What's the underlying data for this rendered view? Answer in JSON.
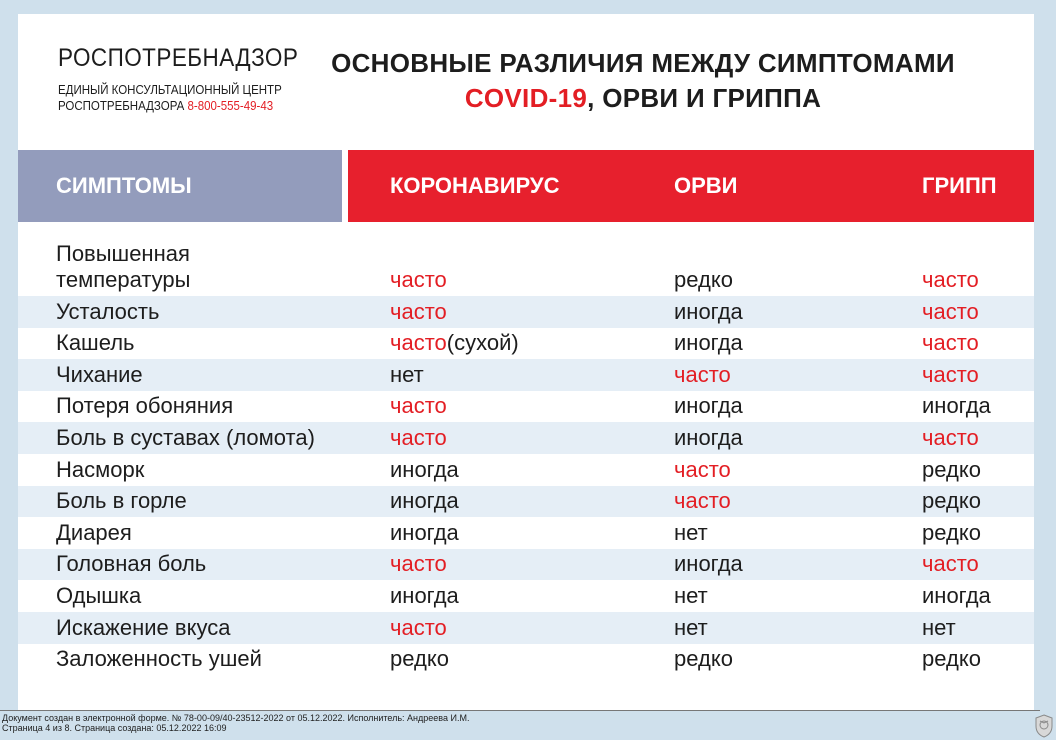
{
  "header": {
    "org_name": "РОСПОТРЕБНАДЗОР",
    "org_sub_line1": "ЕДИНЫЙ КОНСУЛЬТАЦИОННЫЙ ЦЕНТР",
    "org_sub_line2": "РОСПОТРЕБНАДЗОРА",
    "phone": "8-800-555-49-43",
    "title_line1": "ОСНОВНЫЕ РАЗЛИЧИЯ МЕЖДУ СИМПТОМАМИ",
    "title_red": "COVID-19",
    "title_line2_rest": ", ОРВИ И ГРИППА"
  },
  "table": {
    "columns": [
      "СИМПТОМЫ",
      "КОРОНАВИРУС",
      "ОРВИ",
      "ГРИПП"
    ],
    "rows": [
      {
        "symptom": "Повышенная",
        "symptom2": "температуры",
        "covid": "часто",
        "covid_suffix": "",
        "orvi": "редко",
        "flu": "часто"
      },
      {
        "symptom": "Усталость",
        "covid": "часто",
        "covid_suffix": "",
        "orvi": "иногда",
        "flu": "часто"
      },
      {
        "symptom": "Кашель",
        "covid": "часто",
        "covid_suffix": "(сухой)",
        "orvi": "иногда",
        "flu": "часто"
      },
      {
        "symptom": "Чихание",
        "covid": "нет",
        "covid_suffix": "",
        "orvi": "часто",
        "flu": "часто"
      },
      {
        "symptom": "Потеря обоняния",
        "covid": "часто",
        "covid_suffix": "",
        "orvi": "иногда",
        "flu": "иногда"
      },
      {
        "symptom": "Боль в суставах (ломота)",
        "covid": "часто",
        "covid_suffix": "",
        "orvi": "иногда",
        "flu": "часто"
      },
      {
        "symptom": "Насморк",
        "covid": "иногда",
        "covid_suffix": "",
        "orvi": "часто",
        "flu": "редко"
      },
      {
        "symptom": "Боль в горле",
        "covid": "иногда",
        "covid_suffix": "",
        "orvi": "часто",
        "flu": "редко"
      },
      {
        "symptom": "Диарея",
        "covid": "иногда",
        "covid_suffix": "",
        "orvi": "нет",
        "flu": "редко"
      },
      {
        "symptom": "Головная боль",
        "covid": "часто",
        "covid_suffix": "",
        "orvi": "иногда",
        "flu": "часто"
      },
      {
        "symptom": "Одышка",
        "covid": "иногда",
        "covid_suffix": "",
        "orvi": "нет",
        "flu": "иногда"
      },
      {
        "symptom": "Искажение вкуса",
        "covid": "часто",
        "covid_suffix": "",
        "orvi": "нет",
        "flu": "нет"
      },
      {
        "symptom": "Заложенность ушей",
        "covid": "редко",
        "covid_suffix": "",
        "orvi": "редко",
        "flu": "редко"
      }
    ]
  },
  "footer": {
    "line1": "Документ создан в электронной форме. № 78-00-09/40-23512-2022 от 05.12.2022. Исполнитель: Андреева И.М.",
    "line2": "Страница 4 из 8. Страница создана: 05.12.2022 16:09"
  },
  "colors": {
    "accent_red": "#e31e24",
    "header_red": "#e7202d",
    "header_blue": "#939cbc",
    "row_alt": "#e5eef6",
    "page_bg": "#cfe0ec"
  },
  "icons": {
    "seal": "coat-of-arms-seal-icon"
  }
}
